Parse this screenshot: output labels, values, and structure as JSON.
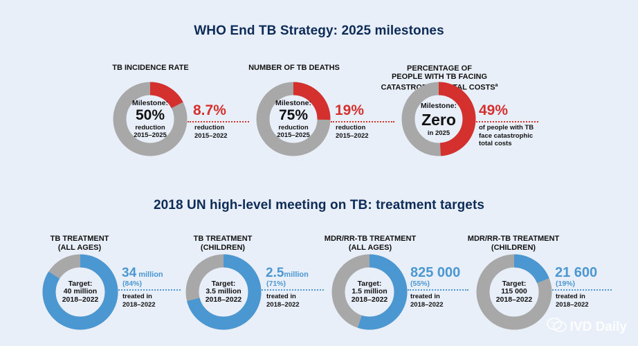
{
  "section1": {
    "title": "WHO End TB Strategy: 2025 milestones",
    "items": [
      {
        "heading": "TB INCIDENCE RATE",
        "center_label": "Milestone:",
        "center_big": "50%",
        "center_sub1": "reduction",
        "center_sub2": "2015–2025",
        "result_big": "8.7%",
        "result_note": "reduction\n2015–2022",
        "fraction": 0.174
      },
      {
        "heading": "NUMBER OF TB DEATHS",
        "center_label": "Milestone:",
        "center_big": "75%",
        "center_sub1": "reduction",
        "center_sub2": "2015–2025",
        "result_big": "19%",
        "result_note": "reduction\n2015–2022",
        "fraction": 0.253
      },
      {
        "heading": "PERCENTAGE OF\nPEOPLE WITH TB FACING\nCATASTROPHIC TOTAL COSTS",
        "heading_sup": "a",
        "center_label": "Milestone:",
        "center_big": "Zero",
        "center_sub1": "in 2025",
        "center_sub2": "",
        "result_big": "49%",
        "result_note": "of people with TB\nface catastrophic\ntotal costs",
        "fraction": 0.49
      }
    ]
  },
  "section2": {
    "title": "2018 UN high-level meeting on TB: treatment targets",
    "items": [
      {
        "heading": "TB TREATMENT\n(ALL AGES)",
        "center_label": "Target:",
        "center_value": "40 million",
        "center_period": "2018–2022",
        "result_big": "34",
        "result_unit": " million",
        "result_pct": "(84%)",
        "result_note": "treated in\n2018–2022",
        "fraction": 0.84
      },
      {
        "heading": "TB TREATMENT\n(CHILDREN)",
        "center_label": "Target:",
        "center_value": "3.5 million",
        "center_period": "2018–2022",
        "result_big": "2.5",
        "result_unit": "million",
        "result_pct": "(71%)",
        "result_note": "treated in\n2018–2022",
        "fraction": 0.71
      },
      {
        "heading": "MDR/RR-TB TREATMENT\n(ALL AGES)",
        "center_label": "Target:",
        "center_value": "1.5 million",
        "center_period": "2018–2022",
        "result_big": "825 000",
        "result_unit": "",
        "result_pct": "(55%)",
        "result_note": "treated in\n2018–2022",
        "fraction": 0.55
      },
      {
        "heading": "MDR/RR-TB TREATMENT\n(CHILDREN)",
        "center_label": "Target:",
        "center_value": "115 000",
        "center_period": "2018–2022",
        "result_big": "21 600",
        "result_unit": "",
        "result_pct": "(19%)",
        "result_note": "treated in\n2018–2022",
        "fraction": 0.19
      }
    ]
  },
  "watermark": {
    "text": "IVD Daily",
    "icon": "wechat-icon"
  },
  "colors": {
    "red": "#d4302e",
    "blue": "#4a97d2",
    "grey": "#a8a8a8",
    "title": "#0d2b57"
  }
}
